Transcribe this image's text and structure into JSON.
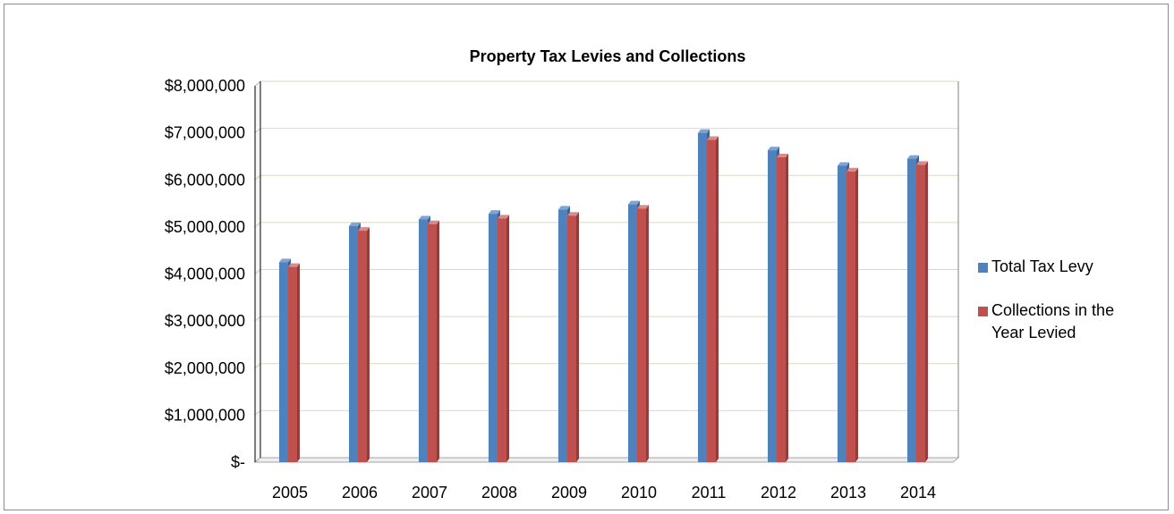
{
  "chart_data": {
    "type": "bar",
    "title": "Property Tax Levies and Collections",
    "categories": [
      "2005",
      "2006",
      "2007",
      "2008",
      "2009",
      "2010",
      "2011",
      "2012",
      "2013",
      "2014"
    ],
    "series": [
      {
        "name": "Total Tax Levy",
        "values": [
          4250000,
          5020000,
          5160000,
          5280000,
          5370000,
          5480000,
          7000000,
          6630000,
          6300000,
          6450000
        ]
      },
      {
        "name": "Collections in the Year Levied",
        "values": [
          4150000,
          4920000,
          5060000,
          5180000,
          5240000,
          5390000,
          6850000,
          6480000,
          6180000,
          6320000
        ]
      }
    ],
    "ylim": [
      0,
      8000000
    ],
    "y_ticks": [
      0,
      1000000,
      2000000,
      3000000,
      4000000,
      5000000,
      6000000,
      7000000,
      8000000
    ],
    "y_tick_labels": [
      "$-",
      "$1,000,000",
      "$2,000,000",
      "$3,000,000",
      "$4,000,000",
      "$5,000,000",
      "$6,000,000",
      "$7,000,000",
      "$8,000,000"
    ],
    "colors": [
      "#4f81bd",
      "#c0504d"
    ],
    "grid": true,
    "legend_position": "right"
  }
}
